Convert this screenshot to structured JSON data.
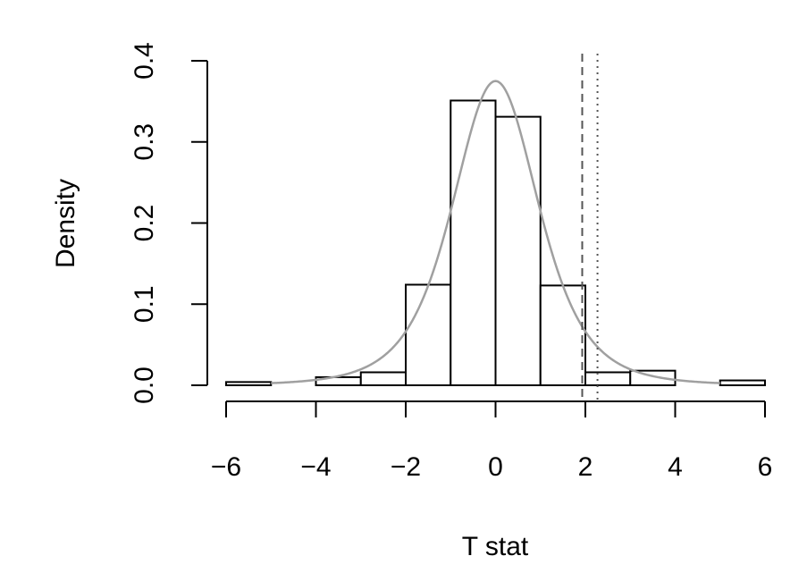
{
  "chart_data": {
    "type": "histogram",
    "xlabel": "T stat",
    "ylabel": "Density",
    "xlim": [
      -6,
      6
    ],
    "ylim": [
      0,
      0.4
    ],
    "x_ticks": [
      "−6",
      "−4",
      "−2",
      "0",
      "2",
      "4",
      "6"
    ],
    "y_ticks": [
      "0.0",
      "0.1",
      "0.2",
      "0.3",
      "0.4"
    ],
    "bins": [
      {
        "from": -6,
        "to": -5,
        "density": 0.004
      },
      {
        "from": -5,
        "to": -4,
        "density": 0.0
      },
      {
        "from": -4,
        "to": -3,
        "density": 0.01
      },
      {
        "from": -3,
        "to": -2,
        "density": 0.016
      },
      {
        "from": -2,
        "to": -1,
        "density": 0.124
      },
      {
        "from": -1,
        "to": 0,
        "density": 0.351
      },
      {
        "from": 0,
        "to": 1,
        "density": 0.331
      },
      {
        "from": 1,
        "to": 2,
        "density": 0.123
      },
      {
        "from": 2,
        "to": 3,
        "density": 0.016
      },
      {
        "from": 3,
        "to": 4,
        "density": 0.018
      },
      {
        "from": 4,
        "to": 5,
        "density": 0.0
      },
      {
        "from": 5,
        "to": 6,
        "density": 0.006
      }
    ],
    "density_curve": {
      "type": "t-density",
      "df": 4,
      "color": "#a0a0a0"
    },
    "reference_lines": [
      {
        "x": 1.93,
        "style": "dashed",
        "color": "#555555"
      },
      {
        "x": 2.27,
        "style": "dotted",
        "color": "#555555"
      }
    ],
    "colors": {
      "bar_fill": "#ffffff",
      "bar_stroke": "#000000"
    }
  }
}
